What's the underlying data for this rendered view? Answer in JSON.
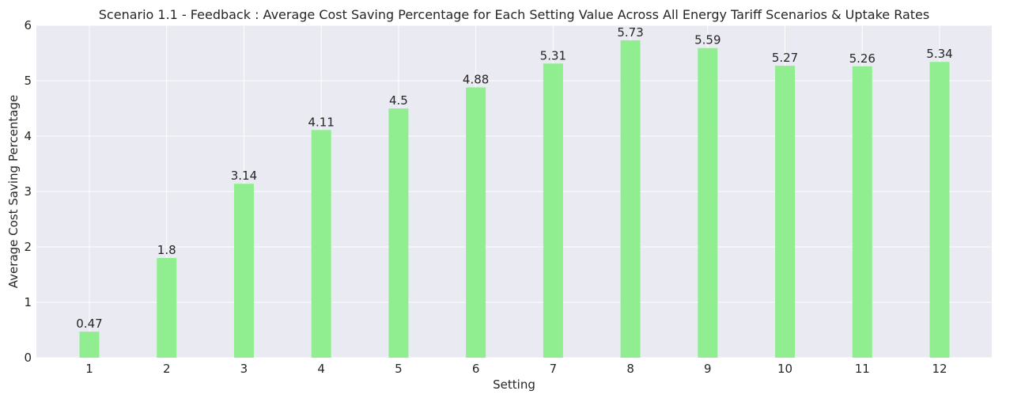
{
  "chart_data": {
    "type": "bar",
    "title": "Scenario 1.1 - Feedback : Average Cost Saving Percentage for Each Setting Value Across All Energy Tariff Scenarios & Uptake Rates",
    "xlabel": "Setting",
    "ylabel": "Average Cost Saving Percentage",
    "categories": [
      "1",
      "2",
      "3",
      "4",
      "5",
      "6",
      "7",
      "8",
      "9",
      "10",
      "11",
      "12"
    ],
    "values": [
      0.47,
      1.8,
      3.14,
      4.11,
      4.5,
      4.88,
      5.31,
      5.73,
      5.59,
      5.27,
      5.26,
      5.34
    ],
    "value_labels": [
      "0.47",
      "1.8",
      "3.14",
      "4.11",
      "4.5",
      "4.88",
      "5.31",
      "5.73",
      "5.59",
      "5.27",
      "5.26",
      "5.34"
    ],
    "ylim": [
      0,
      6
    ],
    "yticks": [
      "0",
      "1",
      "2",
      "3",
      "4",
      "5",
      "6"
    ],
    "grid": true,
    "colors": {
      "bar": "#90ee90",
      "plot_background": "#eaeaf2",
      "grid": "#ffffff"
    }
  }
}
